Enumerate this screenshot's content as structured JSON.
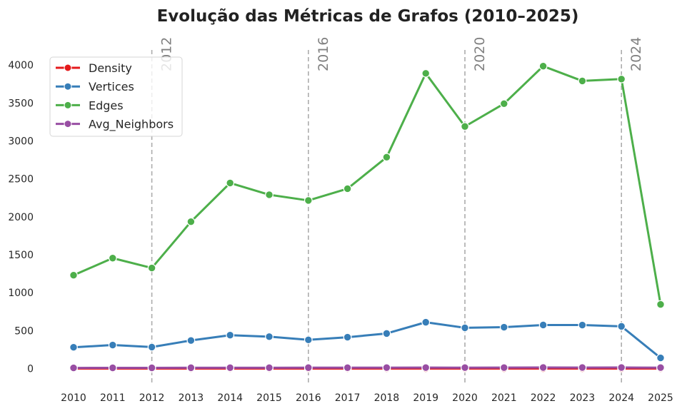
{
  "chart_data": {
    "type": "line",
    "title": "Evolução das Métricas de Grafos (2010–2025)",
    "xlabel": "",
    "ylabel": "",
    "x": [
      "2010",
      "2011",
      "2012",
      "2013",
      "2014",
      "2015",
      "2016",
      "2017",
      "2018",
      "2019",
      "2020",
      "2021",
      "2022",
      "2023",
      "2024",
      "2025"
    ],
    "ylim": [
      -200,
      4200
    ],
    "yticks": [
      "0",
      "500",
      "1000",
      "1500",
      "2000",
      "2500",
      "3000",
      "3500",
      "4000"
    ],
    "yticks_values": [
      0,
      500,
      1000,
      1500,
      2000,
      2500,
      3000,
      3500,
      4000
    ],
    "grid": false,
    "legend_position": "top-left",
    "vlines": [
      {
        "x": "2012",
        "label": "2012"
      },
      {
        "x": "2016",
        "label": "2016"
      },
      {
        "x": "2020",
        "label": "2020"
      },
      {
        "x": "2024",
        "label": "2024"
      }
    ],
    "series": [
      {
        "name": "Density",
        "color": "#e41a1c",
        "values": [
          0.01,
          0.01,
          0.01,
          0.01,
          0.01,
          0.01,
          0.01,
          0.01,
          0.01,
          0.01,
          0.01,
          0.01,
          0.01,
          0.01,
          0.01,
          0.01
        ]
      },
      {
        "name": "Vertices",
        "color": "#377eb8",
        "values": [
          280,
          310,
          283,
          370,
          440,
          420,
          378,
          413,
          462,
          610,
          537,
          545,
          574,
          573,
          556,
          140
        ]
      },
      {
        "name": "Edges",
        "color": "#4daf4a",
        "values": [
          1230,
          1455,
          1325,
          1935,
          2445,
          2290,
          2215,
          2370,
          2785,
          3890,
          3190,
          3490,
          3985,
          3790,
          3815,
          845
        ]
      },
      {
        "name": "Avg_Neighbors",
        "color": "#984ea3",
        "values": [
          8.8,
          9.4,
          9.4,
          10.5,
          11.1,
          10.9,
          11.7,
          11.5,
          12.1,
          12.8,
          11.9,
          12.8,
          13.9,
          13.2,
          13.7,
          12.1
        ]
      }
    ]
  }
}
